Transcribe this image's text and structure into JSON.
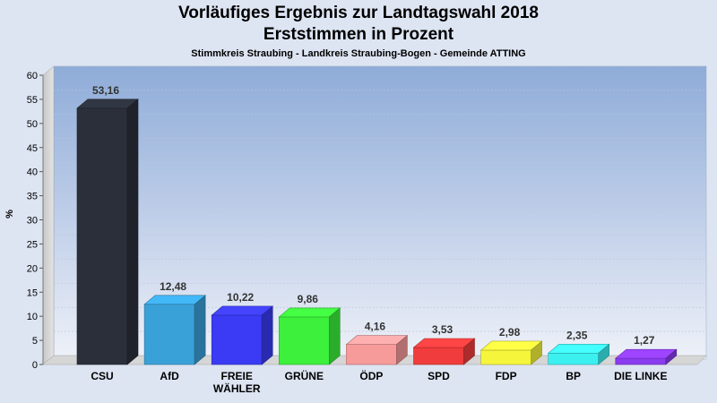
{
  "header": {
    "title": "Vorläufiges Ergebnis zur Landtagswahl 2018",
    "subtitle": "Erststimmen in Prozent",
    "region": "Stimmkreis Straubing - Landkreis Straubing-Bogen - Gemeinde ATTING"
  },
  "chart_data": {
    "type": "bar",
    "title": "Vorläufiges Ergebnis zur Landtagswahl 2018",
    "subtitle": "Erststimmen in Prozent",
    "ylabel": "%",
    "xlabel": "",
    "ylim": [
      0,
      60
    ],
    "yticks": [
      0,
      5,
      10,
      15,
      20,
      25,
      30,
      35,
      40,
      45,
      50,
      55,
      60
    ],
    "grid": true,
    "categories": [
      "CSU",
      "AfD",
      "FREIE WÄHLER",
      "GRÜNE",
      "ÖDP",
      "SPD",
      "FDP",
      "BP",
      "DIE LINKE"
    ],
    "values": [
      53.16,
      12.48,
      10.22,
      9.86,
      4.16,
      3.53,
      2.98,
      2.35,
      1.27
    ],
    "value_labels": [
      "53,16",
      "12,48",
      "10,22",
      "9,86",
      "4,16",
      "3,53",
      "2,98",
      "2,35",
      "1,27"
    ],
    "colors": [
      "#2b2f3a",
      "#3aa0d8",
      "#3b3bf5",
      "#3cf03c",
      "#f79a9a",
      "#f03c3c",
      "#f5f53c",
      "#3cf0f0",
      "#8a3cf0"
    ]
  }
}
